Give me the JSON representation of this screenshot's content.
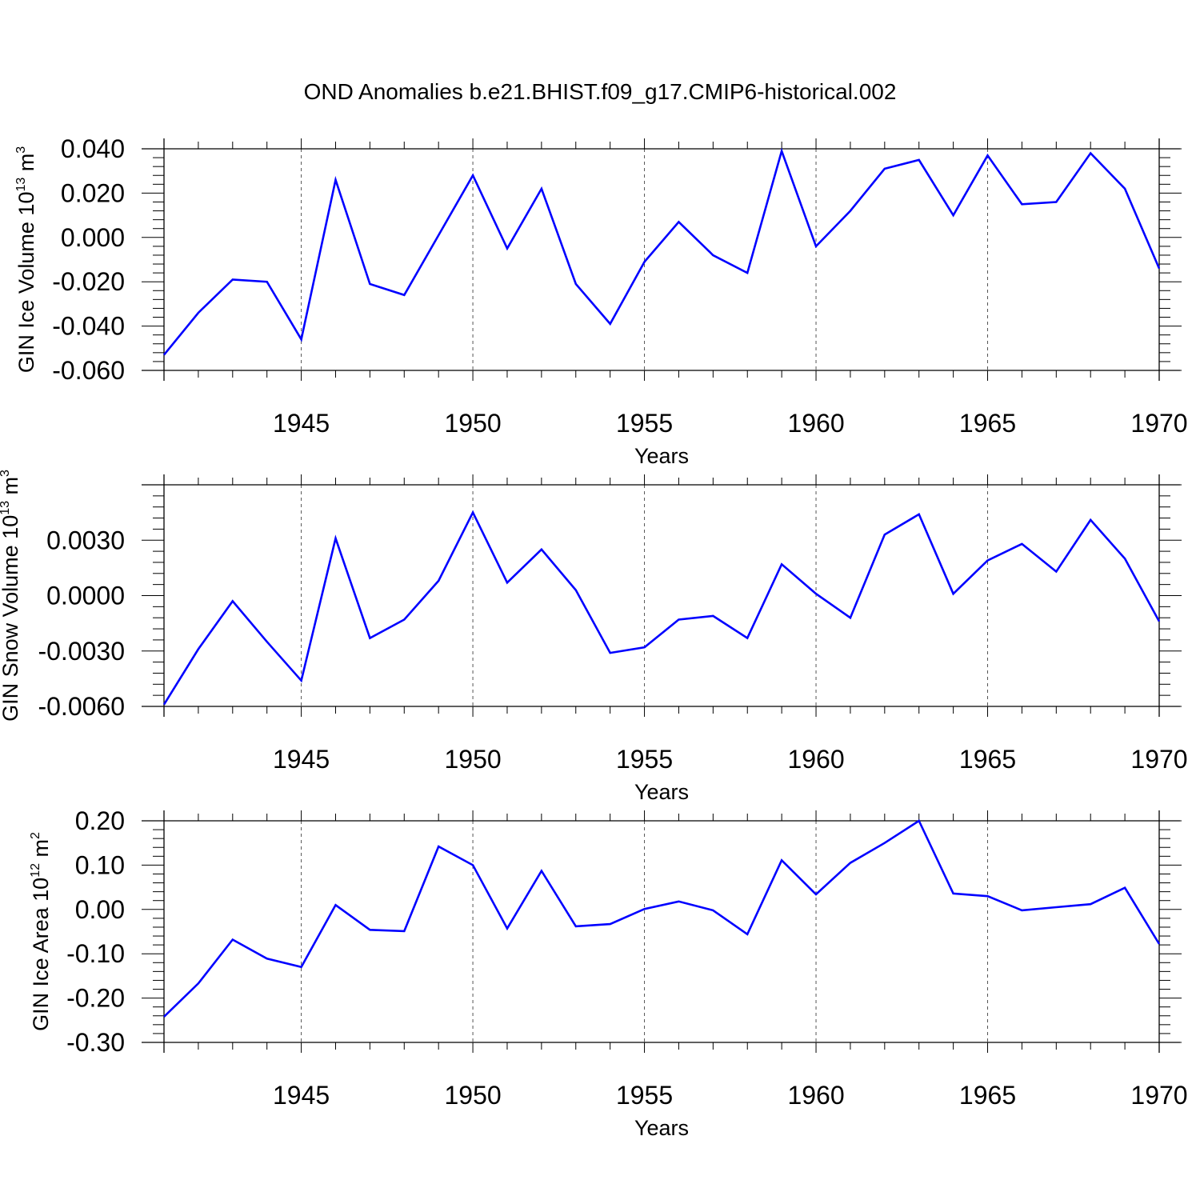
{
  "title": "OND Anomalies b.e21.BHIST.f09_g17.CMIP6-historical.002",
  "chart_data": [
    {
      "type": "line",
      "title": "OND Anomalies b.e21.BHIST.f09_g17.CMIP6-historical.002",
      "xlabel": "Years",
      "ylabel": "GIN Ice Volume 10",
      "ylabel_exp": "13",
      "ylabel_unit": "m",
      "ylabel_unit_exp": "3",
      "xlim": [
        1941,
        1970
      ],
      "ylim": [
        -0.06,
        0.04
      ],
      "xticks": [
        1945,
        1950,
        1955,
        1960,
        1965,
        1970
      ],
      "yticks": [
        "0.040",
        "0.020",
        "0.000",
        "-0.020",
        "-0.040",
        "-0.060"
      ],
      "ytick_values": [
        0.04,
        0.02,
        0.0,
        -0.02,
        -0.04,
        -0.06
      ],
      "grid": "vertical dashed at major x ticks",
      "line_color": "#0000ff",
      "series": [
        {
          "name": "GIN Ice Volume",
          "x": [
            1941,
            1942,
            1943,
            1944,
            1945,
            1946,
            1947,
            1948,
            1949,
            1950,
            1951,
            1952,
            1953,
            1954,
            1955,
            1956,
            1957,
            1958,
            1959,
            1960,
            1961,
            1962,
            1963,
            1964,
            1965,
            1966,
            1967,
            1968,
            1969,
            1970
          ],
          "values": [
            -0.053,
            -0.034,
            -0.019,
            -0.02,
            -0.046,
            0.026,
            -0.021,
            -0.026,
            0.001,
            0.028,
            -0.005,
            0.022,
            -0.021,
            -0.039,
            -0.011,
            0.007,
            -0.008,
            -0.016,
            0.039,
            -0.004,
            0.012,
            0.031,
            0.035,
            0.01,
            0.037,
            0.015,
            0.016,
            0.038,
            0.022,
            -0.014
          ]
        }
      ]
    },
    {
      "type": "line",
      "xlabel": "Years",
      "ylabel": "GIN Snow Volume 10",
      "ylabel_exp": "13",
      "ylabel_unit": "m",
      "ylabel_unit_exp": "3",
      "xlim": [
        1941,
        1970
      ],
      "ylim": [
        -0.006,
        0.006
      ],
      "xticks": [
        1945,
        1950,
        1955,
        1960,
        1965,
        1970
      ],
      "yticks": [
        "0.0030",
        "0.0000",
        "-0.0030",
        "-0.0060"
      ],
      "ytick_values": [
        0.003,
        0.0,
        -0.003,
        -0.006
      ],
      "grid": "vertical dashed at major x ticks",
      "line_color": "#0000ff",
      "series": [
        {
          "name": "GIN Snow Volume",
          "x": [
            1941,
            1942,
            1943,
            1944,
            1945,
            1946,
            1947,
            1948,
            1949,
            1950,
            1951,
            1952,
            1953,
            1954,
            1955,
            1956,
            1957,
            1958,
            1959,
            1960,
            1961,
            1962,
            1963,
            1964,
            1965,
            1966,
            1967,
            1968,
            1969,
            1970
          ],
          "values": [
            -0.0059,
            -0.0029,
            -0.0003,
            -0.0025,
            -0.0046,
            0.0031,
            -0.0023,
            -0.0013,
            0.0008,
            0.0045,
            0.0007,
            0.0025,
            0.0003,
            -0.0031,
            -0.0028,
            -0.0013,
            -0.0011,
            -0.0023,
            0.0017,
            0.0001,
            -0.0012,
            0.0033,
            0.0044,
            0.0001,
            0.0019,
            0.0028,
            0.0013,
            0.0041,
            0.002,
            -0.0014
          ]
        }
      ]
    },
    {
      "type": "line",
      "xlabel": "Years",
      "ylabel": "GIN Ice Area 10",
      "ylabel_exp": "12",
      "ylabel_unit": "m",
      "ylabel_unit_exp": "2",
      "xlim": [
        1941,
        1970
      ],
      "ylim": [
        -0.3,
        0.2
      ],
      "xticks": [
        1945,
        1950,
        1955,
        1960,
        1965,
        1970
      ],
      "yticks": [
        "0.20",
        "0.10",
        "0.00",
        "-0.10",
        "-0.20",
        "-0.30"
      ],
      "ytick_values": [
        0.2,
        0.1,
        0.0,
        -0.1,
        -0.2,
        -0.3
      ],
      "grid": "vertical dashed at major x ticks",
      "line_color": "#0000ff",
      "series": [
        {
          "name": "GIN Ice Area",
          "x": [
            1941,
            1942,
            1943,
            1944,
            1945,
            1946,
            1947,
            1948,
            1949,
            1950,
            1951,
            1952,
            1953,
            1954,
            1955,
            1956,
            1957,
            1958,
            1959,
            1960,
            1961,
            1962,
            1963,
            1964,
            1965,
            1966,
            1967,
            1968,
            1969,
            1970
          ],
          "values": [
            -0.242,
            -0.167,
            -0.068,
            -0.111,
            -0.13,
            0.01,
            -0.046,
            -0.049,
            0.142,
            0.1,
            -0.043,
            0.087,
            -0.038,
            -0.033,
            0.001,
            0.018,
            -0.002,
            -0.056,
            0.111,
            0.034,
            0.105,
            0.15,
            0.2,
            0.036,
            0.03,
            -0.002,
            0.005,
            0.012,
            0.049,
            -0.078
          ]
        }
      ]
    }
  ]
}
